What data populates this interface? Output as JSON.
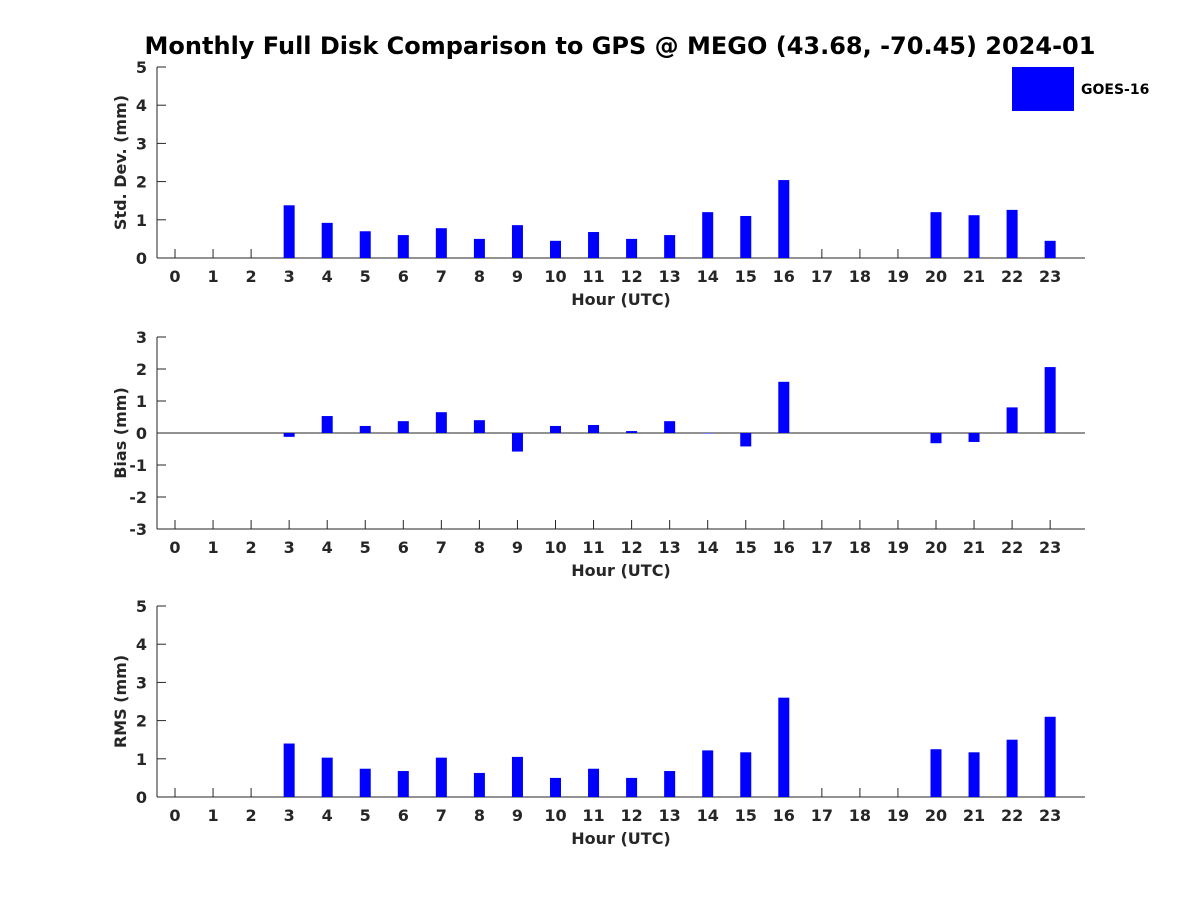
{
  "title": "Monthly Full Disk Comparison to GPS @ MEGO (43.68, -70.45) 2024-01",
  "legend": {
    "label": "GOES-16",
    "color": "#0000ff",
    "position": "top-right"
  },
  "chart_data": [
    {
      "type": "bar",
      "xlabel": "Hour (UTC)",
      "ylabel": "Std. Dev. (mm)",
      "ylim": [
        0,
        5
      ],
      "yticks": [
        0,
        1,
        2,
        3,
        4,
        5
      ],
      "categories": [
        "0",
        "1",
        "2",
        "3",
        "4",
        "5",
        "6",
        "7",
        "8",
        "9",
        "10",
        "11",
        "12",
        "13",
        "14",
        "15",
        "16",
        "17",
        "18",
        "19",
        "20",
        "21",
        "22",
        "23"
      ],
      "series": [
        {
          "name": "GOES-16",
          "color": "#0000ff",
          "values": [
            null,
            null,
            null,
            1.38,
            0.92,
            0.7,
            0.6,
            0.78,
            0.5,
            0.86,
            0.45,
            0.68,
            0.5,
            0.6,
            1.2,
            1.1,
            2.04,
            null,
            null,
            null,
            1.2,
            1.12,
            1.26,
            0.45
          ]
        }
      ]
    },
    {
      "type": "bar",
      "xlabel": "Hour (UTC)",
      "ylabel": "Bias (mm)",
      "ylim": [
        -3,
        3
      ],
      "yticks": [
        -3,
        -2,
        -1,
        0,
        1,
        2,
        3
      ],
      "categories": [
        "0",
        "1",
        "2",
        "3",
        "4",
        "5",
        "6",
        "7",
        "8",
        "9",
        "10",
        "11",
        "12",
        "13",
        "14",
        "15",
        "16",
        "17",
        "18",
        "19",
        "20",
        "21",
        "22",
        "23"
      ],
      "series": [
        {
          "name": "GOES-16",
          "color": "#0000ff",
          "values": [
            null,
            null,
            null,
            -0.12,
            0.53,
            0.22,
            0.37,
            0.65,
            0.4,
            -0.58,
            0.22,
            0.25,
            0.06,
            0.37,
            0.0,
            -0.42,
            1.6,
            null,
            null,
            null,
            -0.32,
            -0.28,
            0.8,
            2.06
          ]
        }
      ]
    },
    {
      "type": "bar",
      "xlabel": "Hour (UTC)",
      "ylabel": "RMS (mm)",
      "ylim": [
        0,
        5
      ],
      "yticks": [
        0,
        1,
        2,
        3,
        4,
        5
      ],
      "categories": [
        "0",
        "1",
        "2",
        "3",
        "4",
        "5",
        "6",
        "7",
        "8",
        "9",
        "10",
        "11",
        "12",
        "13",
        "14",
        "15",
        "16",
        "17",
        "18",
        "19",
        "20",
        "21",
        "22",
        "23"
      ],
      "series": [
        {
          "name": "GOES-16",
          "color": "#0000ff",
          "values": [
            null,
            null,
            null,
            1.4,
            1.03,
            0.74,
            0.68,
            1.03,
            0.63,
            1.05,
            0.5,
            0.74,
            0.5,
            0.68,
            1.22,
            1.17,
            2.6,
            null,
            null,
            null,
            1.25,
            1.17,
            1.5,
            2.1
          ]
        }
      ]
    }
  ]
}
